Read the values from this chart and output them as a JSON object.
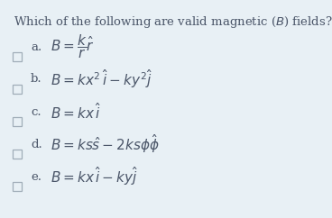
{
  "title": "Which of the following are valid magnetic ($B$) fields?",
  "background_color": "#e8f0f5",
  "text_color": "#4a5568",
  "checkbox_edge_color": "#a0adb8",
  "options": [
    {
      "label": "a.",
      "formula": "$B = \\dfrac{k}{r}\\hat{r}$"
    },
    {
      "label": "b.",
      "formula": "$B = kx^2\\,\\hat{i} - ky^2\\hat{j}$"
    },
    {
      "label": "c.",
      "formula": "$B = kx\\,\\hat{i}$"
    },
    {
      "label": "d.",
      "formula": "$B = ks\\hat{s} - 2ks\\phi\\hat{\\phi}$"
    },
    {
      "label": "e.",
      "formula": "$B = kx\\,\\hat{i} - ky\\hat{j}$"
    }
  ],
  "title_fontsize": 9.5,
  "option_fontsize": 11.0,
  "label_fontsize": 9.5,
  "figwidth": 3.68,
  "figheight": 2.42,
  "dpi": 100
}
